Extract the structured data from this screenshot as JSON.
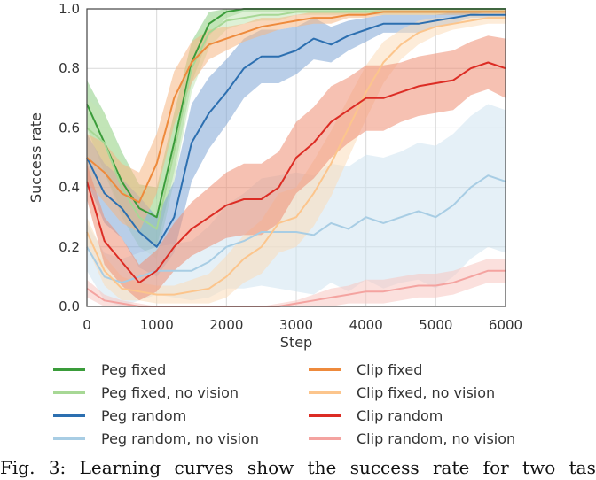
{
  "chart_data": {
    "type": "line",
    "title": "",
    "xlabel": "Step",
    "ylabel": "Success rate",
    "xlim": [
      0,
      6000
    ],
    "ylim": [
      0,
      1.0
    ],
    "x_ticks": [
      "0",
      "1000",
      "2000",
      "3000",
      "4000",
      "5000",
      "6000"
    ],
    "y_ticks": [
      "0.0",
      "0.2",
      "0.4",
      "0.6",
      "0.8",
      "1.0"
    ],
    "grid": true,
    "legend_position": "bottom",
    "x": [
      0,
      250,
      500,
      750,
      1000,
      1250,
      1500,
      1750,
      2000,
      2250,
      2500,
      2750,
      3000,
      3250,
      3500,
      3750,
      4000,
      4250,
      4500,
      4750,
      5000,
      5250,
      5500,
      5750,
      6000
    ],
    "series": [
      {
        "name": "Peg fixed",
        "color": "#3a9c3a",
        "band_color": "#8ccd83",
        "values": [
          0.68,
          0.55,
          0.42,
          0.33,
          0.3,
          0.55,
          0.82,
          0.95,
          0.99,
          1.0,
          1.0,
          1.0,
          1.0,
          1.0,
          1.0,
          1.0,
          1.0,
          1.0,
          1.0,
          1.0,
          1.0,
          1.0,
          1.0,
          1.0,
          1.0
        ],
        "band": [
          0.08,
          0.1,
          0.1,
          0.08,
          0.1,
          0.1,
          0.07,
          0.04,
          0.02,
          0.01,
          0.01,
          0.01,
          0.01,
          0.01,
          0.01,
          0.01,
          0.01,
          0.01,
          0.01,
          0.01,
          0.01,
          0.01,
          0.01,
          0.01,
          0.01
        ]
      },
      {
        "name": "Peg fixed, no vision",
        "color": "#a7d895",
        "band_color": "#c3e6b4",
        "values": [
          0.6,
          0.55,
          0.4,
          0.3,
          0.26,
          0.52,
          0.8,
          0.92,
          0.96,
          0.97,
          0.98,
          0.98,
          0.99,
          0.99,
          0.99,
          0.99,
          0.99,
          0.99,
          0.99,
          0.99,
          0.99,
          0.99,
          0.99,
          0.99,
          0.99
        ],
        "band": [
          0.1,
          0.1,
          0.1,
          0.1,
          0.1,
          0.1,
          0.08,
          0.05,
          0.03,
          0.02,
          0.02,
          0.02,
          0.01,
          0.01,
          0.01,
          0.01,
          0.01,
          0.01,
          0.01,
          0.01,
          0.01,
          0.01,
          0.01,
          0.01,
          0.01
        ]
      },
      {
        "name": "Peg random",
        "color": "#2c6fb0",
        "band_color": "#7fa6d6",
        "values": [
          0.5,
          0.38,
          0.33,
          0.25,
          0.2,
          0.3,
          0.55,
          0.65,
          0.72,
          0.8,
          0.84,
          0.84,
          0.86,
          0.9,
          0.88,
          0.91,
          0.93,
          0.95,
          0.95,
          0.95,
          0.96,
          0.97,
          0.98,
          0.98,
          0.98
        ],
        "band": [
          0.08,
          0.1,
          0.1,
          0.12,
          0.1,
          0.12,
          0.13,
          0.12,
          0.11,
          0.1,
          0.09,
          0.09,
          0.08,
          0.07,
          0.06,
          0.05,
          0.04,
          0.03,
          0.03,
          0.03,
          0.02,
          0.02,
          0.01,
          0.01,
          0.01
        ]
      },
      {
        "name": "Peg random, no vision",
        "color": "#a8cde4",
        "band_color": "#cfe3f0",
        "values": [
          0.2,
          0.1,
          0.08,
          0.1,
          0.12,
          0.12,
          0.12,
          0.15,
          0.2,
          0.22,
          0.25,
          0.25,
          0.25,
          0.24,
          0.28,
          0.26,
          0.3,
          0.28,
          0.3,
          0.32,
          0.3,
          0.34,
          0.4,
          0.44,
          0.42
        ],
        "band": [
          0.08,
          0.08,
          0.08,
          0.08,
          0.08,
          0.09,
          0.1,
          0.12,
          0.14,
          0.16,
          0.18,
          0.19,
          0.2,
          0.2,
          0.2,
          0.21,
          0.21,
          0.22,
          0.22,
          0.23,
          0.24,
          0.24,
          0.24,
          0.24,
          0.24
        ]
      },
      {
        "name": "Clip fixed",
        "color": "#ee8a3c",
        "band_color": "#f5b683",
        "values": [
          0.5,
          0.45,
          0.38,
          0.35,
          0.48,
          0.7,
          0.82,
          0.88,
          0.9,
          0.92,
          0.94,
          0.95,
          0.96,
          0.97,
          0.97,
          0.98,
          0.98,
          0.99,
          0.99,
          0.99,
          0.99,
          0.99,
          0.99,
          0.99,
          0.99
        ],
        "band": [
          0.08,
          0.1,
          0.1,
          0.1,
          0.1,
          0.09,
          0.07,
          0.05,
          0.04,
          0.03,
          0.03,
          0.02,
          0.02,
          0.02,
          0.02,
          0.01,
          0.01,
          0.01,
          0.01,
          0.01,
          0.01,
          0.01,
          0.01,
          0.01,
          0.01
        ]
      },
      {
        "name": "Clip fixed, no vision",
        "color": "#fcc58c",
        "band_color": "#fcdcb9",
        "values": [
          0.25,
          0.12,
          0.06,
          0.05,
          0.04,
          0.04,
          0.05,
          0.06,
          0.1,
          0.16,
          0.2,
          0.28,
          0.3,
          0.38,
          0.48,
          0.6,
          0.72,
          0.82,
          0.88,
          0.92,
          0.94,
          0.95,
          0.96,
          0.97,
          0.97
        ],
        "band": [
          0.05,
          0.05,
          0.04,
          0.03,
          0.03,
          0.03,
          0.04,
          0.05,
          0.07,
          0.08,
          0.09,
          0.1,
          0.1,
          0.11,
          0.11,
          0.1,
          0.09,
          0.07,
          0.05,
          0.04,
          0.03,
          0.02,
          0.02,
          0.02,
          0.02
        ]
      },
      {
        "name": "Clip random",
        "color": "#dc2c24",
        "band_color": "#ee8e72",
        "values": [
          0.42,
          0.22,
          0.15,
          0.08,
          0.12,
          0.2,
          0.26,
          0.3,
          0.34,
          0.36,
          0.36,
          0.4,
          0.5,
          0.55,
          0.62,
          0.66,
          0.7,
          0.7,
          0.72,
          0.74,
          0.75,
          0.76,
          0.8,
          0.82,
          0.8
        ],
        "band": [
          0.06,
          0.08,
          0.08,
          0.06,
          0.07,
          0.08,
          0.09,
          0.1,
          0.11,
          0.12,
          0.12,
          0.12,
          0.12,
          0.12,
          0.12,
          0.11,
          0.11,
          0.11,
          0.1,
          0.1,
          0.1,
          0.1,
          0.09,
          0.09,
          0.1
        ]
      },
      {
        "name": "Clip random, no vision",
        "color": "#f4a3a0",
        "band_color": "#f8c6c1",
        "values": [
          0.06,
          0.02,
          0.01,
          0.0,
          0.0,
          0.0,
          0.0,
          0.0,
          0.0,
          0.0,
          0.0,
          0.0,
          0.01,
          0.02,
          0.03,
          0.04,
          0.05,
          0.05,
          0.06,
          0.07,
          0.07,
          0.08,
          0.1,
          0.12,
          0.12
        ],
        "band": [
          0.03,
          0.02,
          0.01,
          0.01,
          0.0,
          0.0,
          0.0,
          0.0,
          0.0,
          0.0,
          0.0,
          0.01,
          0.01,
          0.02,
          0.03,
          0.03,
          0.04,
          0.04,
          0.04,
          0.04,
          0.04,
          0.04,
          0.04,
          0.04,
          0.04
        ]
      }
    ]
  },
  "legend": {
    "left": [
      "Peg fixed",
      "Peg fixed, no vision",
      "Peg random",
      "Peg random, no vision"
    ],
    "right": [
      "Clip fixed",
      "Clip fixed, no vision",
      "Clip random",
      "Clip random, no vision"
    ]
  },
  "caption": "Fig. 3: Learning curves show the success rate for two tas"
}
